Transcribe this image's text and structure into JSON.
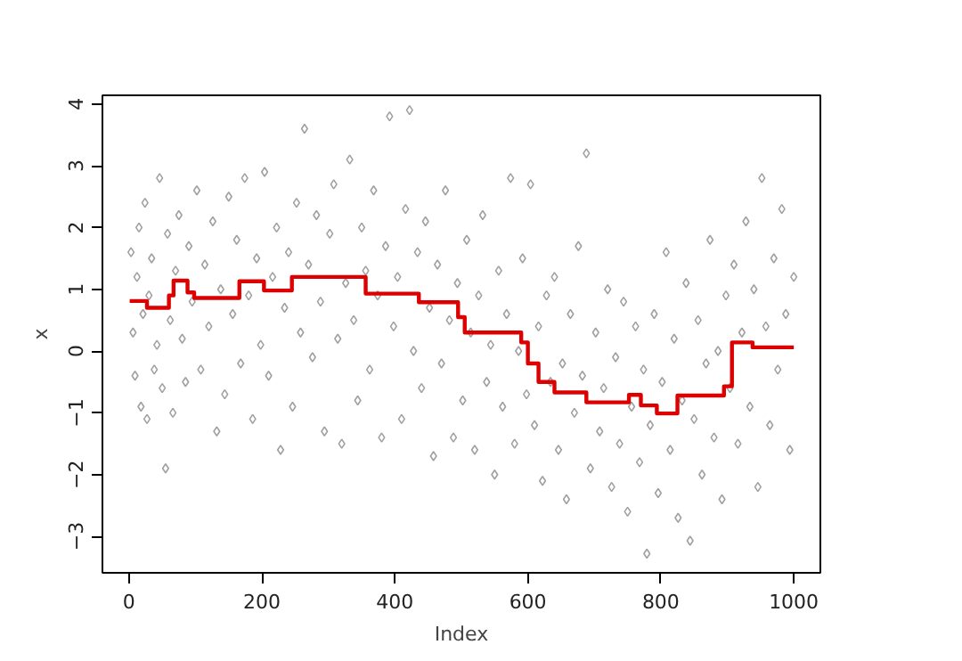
{
  "chart_data": {
    "type": "scatter",
    "xlabel": "Index",
    "ylabel": "x",
    "xlim": [
      -40,
      1040
    ],
    "ylim": [
      -3.59,
      4.14
    ],
    "xticks": [
      0,
      200,
      400,
      600,
      800,
      1000
    ],
    "yticks": [
      -3,
      -2,
      -1,
      0,
      1,
      2,
      3,
      4
    ],
    "grid": false,
    "series": [
      {
        "color": "#a0a0a0",
        "marker": "diamond",
        "x": [
          3,
          6,
          9,
          12,
          15,
          18,
          21,
          24,
          27,
          30,
          34,
          38,
          42,
          46,
          50,
          55,
          58,
          62,
          66,
          70,
          75,
          80,
          85,
          90,
          95,
          102,
          108,
          114,
          120,
          126,
          132,
          138,
          144,
          150,
          156,
          162,
          168,
          174,
          180,
          186,
          192,
          198,
          204,
          210,
          216,
          222,
          228,
          234,
          240,
          246,
          252,
          258,
          264,
          270,
          276,
          282,
          288,
          294,
          302,
          308,
          314,
          320,
          326,
          332,
          338,
          344,
          350,
          356,
          362,
          368,
          374,
          380,
          386,
          392,
          398,
          404,
          410,
          416,
          422,
          428,
          434,
          440,
          446,
          452,
          458,
          464,
          470,
          476,
          482,
          488,
          494,
          502,
          508,
          514,
          520,
          526,
          532,
          538,
          544,
          550,
          556,
          562,
          568,
          574,
          580,
          586,
          592,
          598,
          604,
          610,
          616,
          622,
          628,
          634,
          640,
          646,
          652,
          658,
          664,
          670,
          676,
          682,
          688,
          694,
          702,
          708,
          714,
          720,
          726,
          732,
          738,
          744,
          750,
          756,
          762,
          768,
          774,
          779,
          784,
          790,
          796,
          802,
          808,
          814,
          820,
          826,
          832,
          838,
          844,
          850,
          856,
          862,
          868,
          874,
          880,
          886,
          892,
          898,
          904,
          910,
          916,
          922,
          928,
          934,
          940,
          946,
          952,
          958,
          964,
          970,
          976,
          982,
          988,
          994,
          1000
        ],
        "values": [
          1.6,
          0.3,
          -0.4,
          1.2,
          2.0,
          -0.9,
          0.6,
          2.4,
          -1.1,
          0.9,
          1.5,
          -0.3,
          0.1,
          2.8,
          -0.6,
          -1.9,
          1.9,
          0.5,
          -1.0,
          1.3,
          2.2,
          0.2,
          -0.5,
          1.7,
          0.8,
          2.6,
          -0.3,
          1.4,
          0.4,
          2.1,
          -1.3,
          1.0,
          -0.7,
          2.5,
          0.6,
          1.8,
          -0.2,
          2.8,
          0.9,
          -1.1,
          1.5,
          0.1,
          2.9,
          -0.4,
          1.2,
          2.0,
          -1.6,
          0.7,
          1.6,
          -0.9,
          2.4,
          0.3,
          3.6,
          1.4,
          -0.1,
          2.2,
          0.8,
          -1.3,
          1.9,
          2.7,
          0.2,
          -1.5,
          1.1,
          3.1,
          0.5,
          -0.8,
          2.0,
          1.3,
          -0.3,
          2.6,
          0.9,
          -1.4,
          1.7,
          3.8,
          0.4,
          1.2,
          -1.1,
          2.3,
          3.9,
          0.0,
          1.6,
          -0.6,
          2.1,
          0.7,
          -1.7,
          1.4,
          -0.2,
          2.6,
          0.5,
          -1.4,
          1.1,
          -0.8,
          1.8,
          0.3,
          -1.6,
          0.9,
          2.2,
          -0.5,
          0.1,
          -2.0,
          1.3,
          -0.9,
          0.6,
          2.8,
          -1.5,
          0.0,
          1.5,
          -0.7,
          2.7,
          -1.2,
          0.4,
          -2.1,
          0.9,
          -0.5,
          1.2,
          -1.6,
          -0.2,
          -2.4,
          0.6,
          -1.0,
          1.7,
          -0.4,
          3.2,
          -1.9,
          0.3,
          -1.3,
          -0.6,
          1.0,
          -2.2,
          -0.1,
          -1.5,
          0.8,
          -2.6,
          -0.9,
          0.4,
          -1.8,
          -0.3,
          -3.28,
          -1.2,
          0.6,
          -2.3,
          -0.5,
          1.6,
          -1.6,
          0.2,
          -2.7,
          -0.8,
          1.1,
          -3.07,
          -1.1,
          0.5,
          -2.0,
          -0.2,
          1.8,
          -1.4,
          0.0,
          -2.4,
          0.9,
          -0.6,
          1.4,
          -1.5,
          0.3,
          2.1,
          -0.9,
          1.0,
          -2.2,
          2.8,
          0.4,
          -1.2,
          1.5,
          -0.3,
          2.3,
          0.6,
          -1.6,
          1.2
        ]
      },
      {
        "type": "step",
        "color": "#dd0000",
        "x": [
          1,
          27,
          60,
          67,
          88,
          98,
          166,
          203,
          245,
          356,
          436,
          495,
          505,
          590,
          600,
          616,
          640,
          688,
          752,
          770,
          794,
          825,
          895,
          907,
          938,
          1000
        ],
        "values": [
          0.81,
          0.7,
          0.9,
          1.14,
          0.95,
          0.86,
          1.13,
          0.98,
          1.2,
          0.93,
          0.79,
          0.55,
          0.3,
          0.14,
          -0.2,
          -0.5,
          -0.67,
          -0.83,
          -0.71,
          -0.88,
          -1.01,
          -0.72,
          -0.57,
          0.14,
          0.06,
          0.06
        ]
      }
    ]
  }
}
